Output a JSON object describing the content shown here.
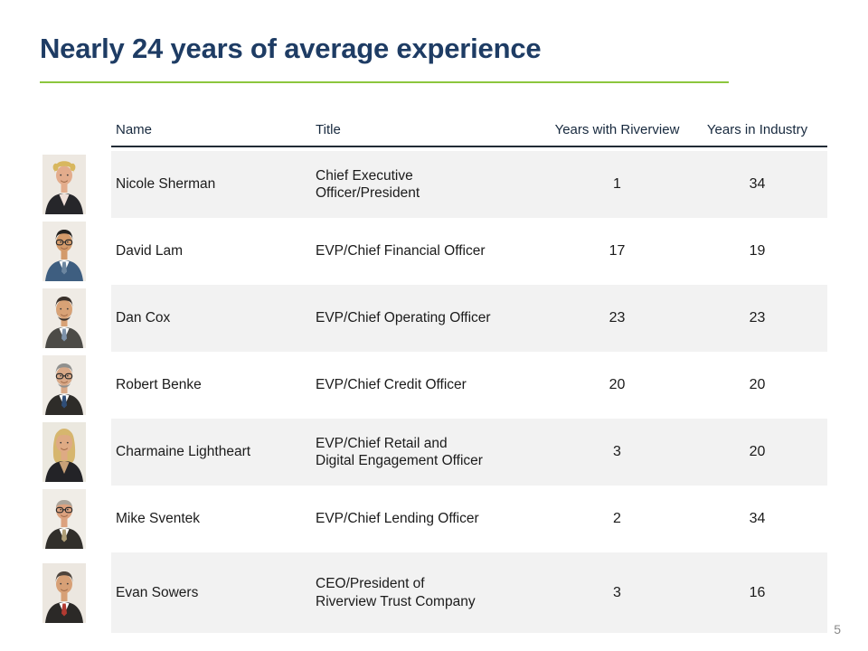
{
  "title": "Nearly 24 years of average experience",
  "page_number": "5",
  "accent": {
    "title_color": "#1e3c64",
    "underline_color": "#8cc63e",
    "row_alt_color": "#f2f2f2",
    "header_rule_color": "#212b36",
    "body_text_color": "#1b1b1b",
    "header_text_color": "#17293e",
    "page_number_color": "#8a8a8a"
  },
  "table": {
    "columns": [
      "Name",
      "Title",
      "Years with Riverview",
      "Years in Industry"
    ],
    "rows": [
      {
        "name": "Nicole Sherman",
        "title": "Chief Executive\nOfficer/President",
        "years_riverview": "1",
        "years_industry": "34",
        "photo": {
          "icon": "headshot-photo",
          "bg": "#ede8e1",
          "hair": "#d8b75e",
          "skin": "#e3ac8c",
          "suit": "#26262a",
          "shirt": "#efdfd8",
          "tie": "",
          "hair_style": "curly",
          "glasses": false,
          "beard": false
        }
      },
      {
        "name": "David Lam",
        "title": "EVP/Chief Financial Officer",
        "years_riverview": "17",
        "years_industry": "19",
        "photo": {
          "icon": "headshot-photo",
          "bg": "#efebe5",
          "hair": "#23211f",
          "skin": "#d39a6a",
          "suit": "#3e5e80",
          "shirt": "#ffffff",
          "tie": "#6c86a0",
          "hair_style": "short",
          "glasses": true,
          "beard": false
        }
      },
      {
        "name": "Dan Cox",
        "title": "EVP/Chief Operating Officer",
        "years_riverview": "23",
        "years_industry": "23",
        "photo": {
          "icon": "headshot-photo",
          "bg": "#efebe5",
          "hair": "#39302a",
          "skin": "#d8a276",
          "suit": "#4c4b47",
          "shirt": "#ffffff",
          "tie": "#7e93ab",
          "hair_style": "short",
          "glasses": false,
          "beard": true
        }
      },
      {
        "name": "Robert Benke",
        "title": "EVP/Chief Credit Officer",
        "years_riverview": "20",
        "years_industry": "20",
        "photo": {
          "icon": "headshot-photo",
          "bg": "#efebe5",
          "hair": "#90908e",
          "skin": "#d8a887",
          "suit": "#2e2c29",
          "shirt": "#ffffff",
          "tie": "#2f4e78",
          "hair_style": "short",
          "glasses": true,
          "beard": true
        }
      },
      {
        "name": "Charmaine Lightheart",
        "title": "EVP/Chief Retail and\nDigital Engagement Officer",
        "years_riverview": "3",
        "years_industry": "20",
        "photo": {
          "icon": "headshot-photo",
          "bg": "#ebe8df",
          "hair": "#d6b66e",
          "skin": "#deaa84",
          "suit": "#232327",
          "shirt": "#c8a178",
          "tie": "",
          "hair_style": "long",
          "glasses": false,
          "beard": false
        }
      },
      {
        "name": "Mike Sventek",
        "title": "EVP/Chief Lending Officer",
        "years_riverview": "2",
        "years_industry": "34",
        "photo": {
          "icon": "headshot-photo",
          "bg": "#f0ede7",
          "hair": "#aba49a",
          "skin": "#dca27f",
          "suit": "#312f2b",
          "shirt": "#ffffff",
          "tie": "#af9f78",
          "hair_style": "balding",
          "glasses": true,
          "beard": false
        }
      },
      {
        "name": "Evan Sowers",
        "title": "CEO/President of\nRiverview Trust Company",
        "years_riverview": "3",
        "years_industry": "16",
        "photo": {
          "icon": "headshot-photo",
          "bg": "#ece7e0",
          "hair": "#4e443c",
          "skin": "#d7a076",
          "suit": "#2b2927",
          "shirt": "#ffffff",
          "tie": "#b23a31",
          "hair_style": "short",
          "glasses": false,
          "beard": false
        }
      }
    ]
  }
}
